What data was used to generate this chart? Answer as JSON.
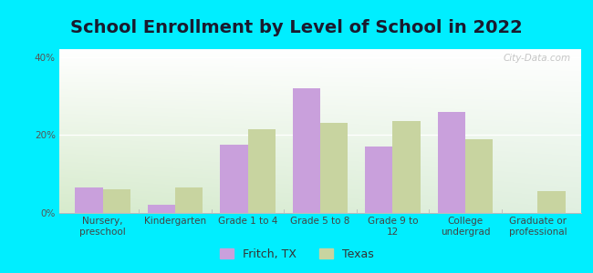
{
  "title": "School Enrollment by Level of School in 2022",
  "categories": [
    "Nursery,\npreschool",
    "Kindergarten",
    "Grade 1 to 4",
    "Grade 5 to 8",
    "Grade 9 to\n12",
    "College\nundergrad",
    "Graduate or\nprofessional"
  ],
  "fritch_values": [
    6.5,
    2.0,
    17.5,
    32.0,
    17.0,
    26.0,
    0.0
  ],
  "texas_values": [
    6.0,
    6.5,
    21.5,
    23.0,
    23.5,
    19.0,
    5.5
  ],
  "fritch_color": "#c9a0dc",
  "texas_color": "#c8d4a0",
  "background_outer": "#00eeff",
  "ylim": [
    0,
    42
  ],
  "yticks": [
    0,
    20,
    40
  ],
  "ytick_labels": [
    "0%",
    "20%",
    "40%"
  ],
  "bar_width": 0.38,
  "legend_labels": [
    "Fritch, TX",
    "Texas"
  ],
  "watermark": "City-Data.com",
  "title_fontsize": 14,
  "tick_fontsize": 7.5,
  "legend_fontsize": 9
}
